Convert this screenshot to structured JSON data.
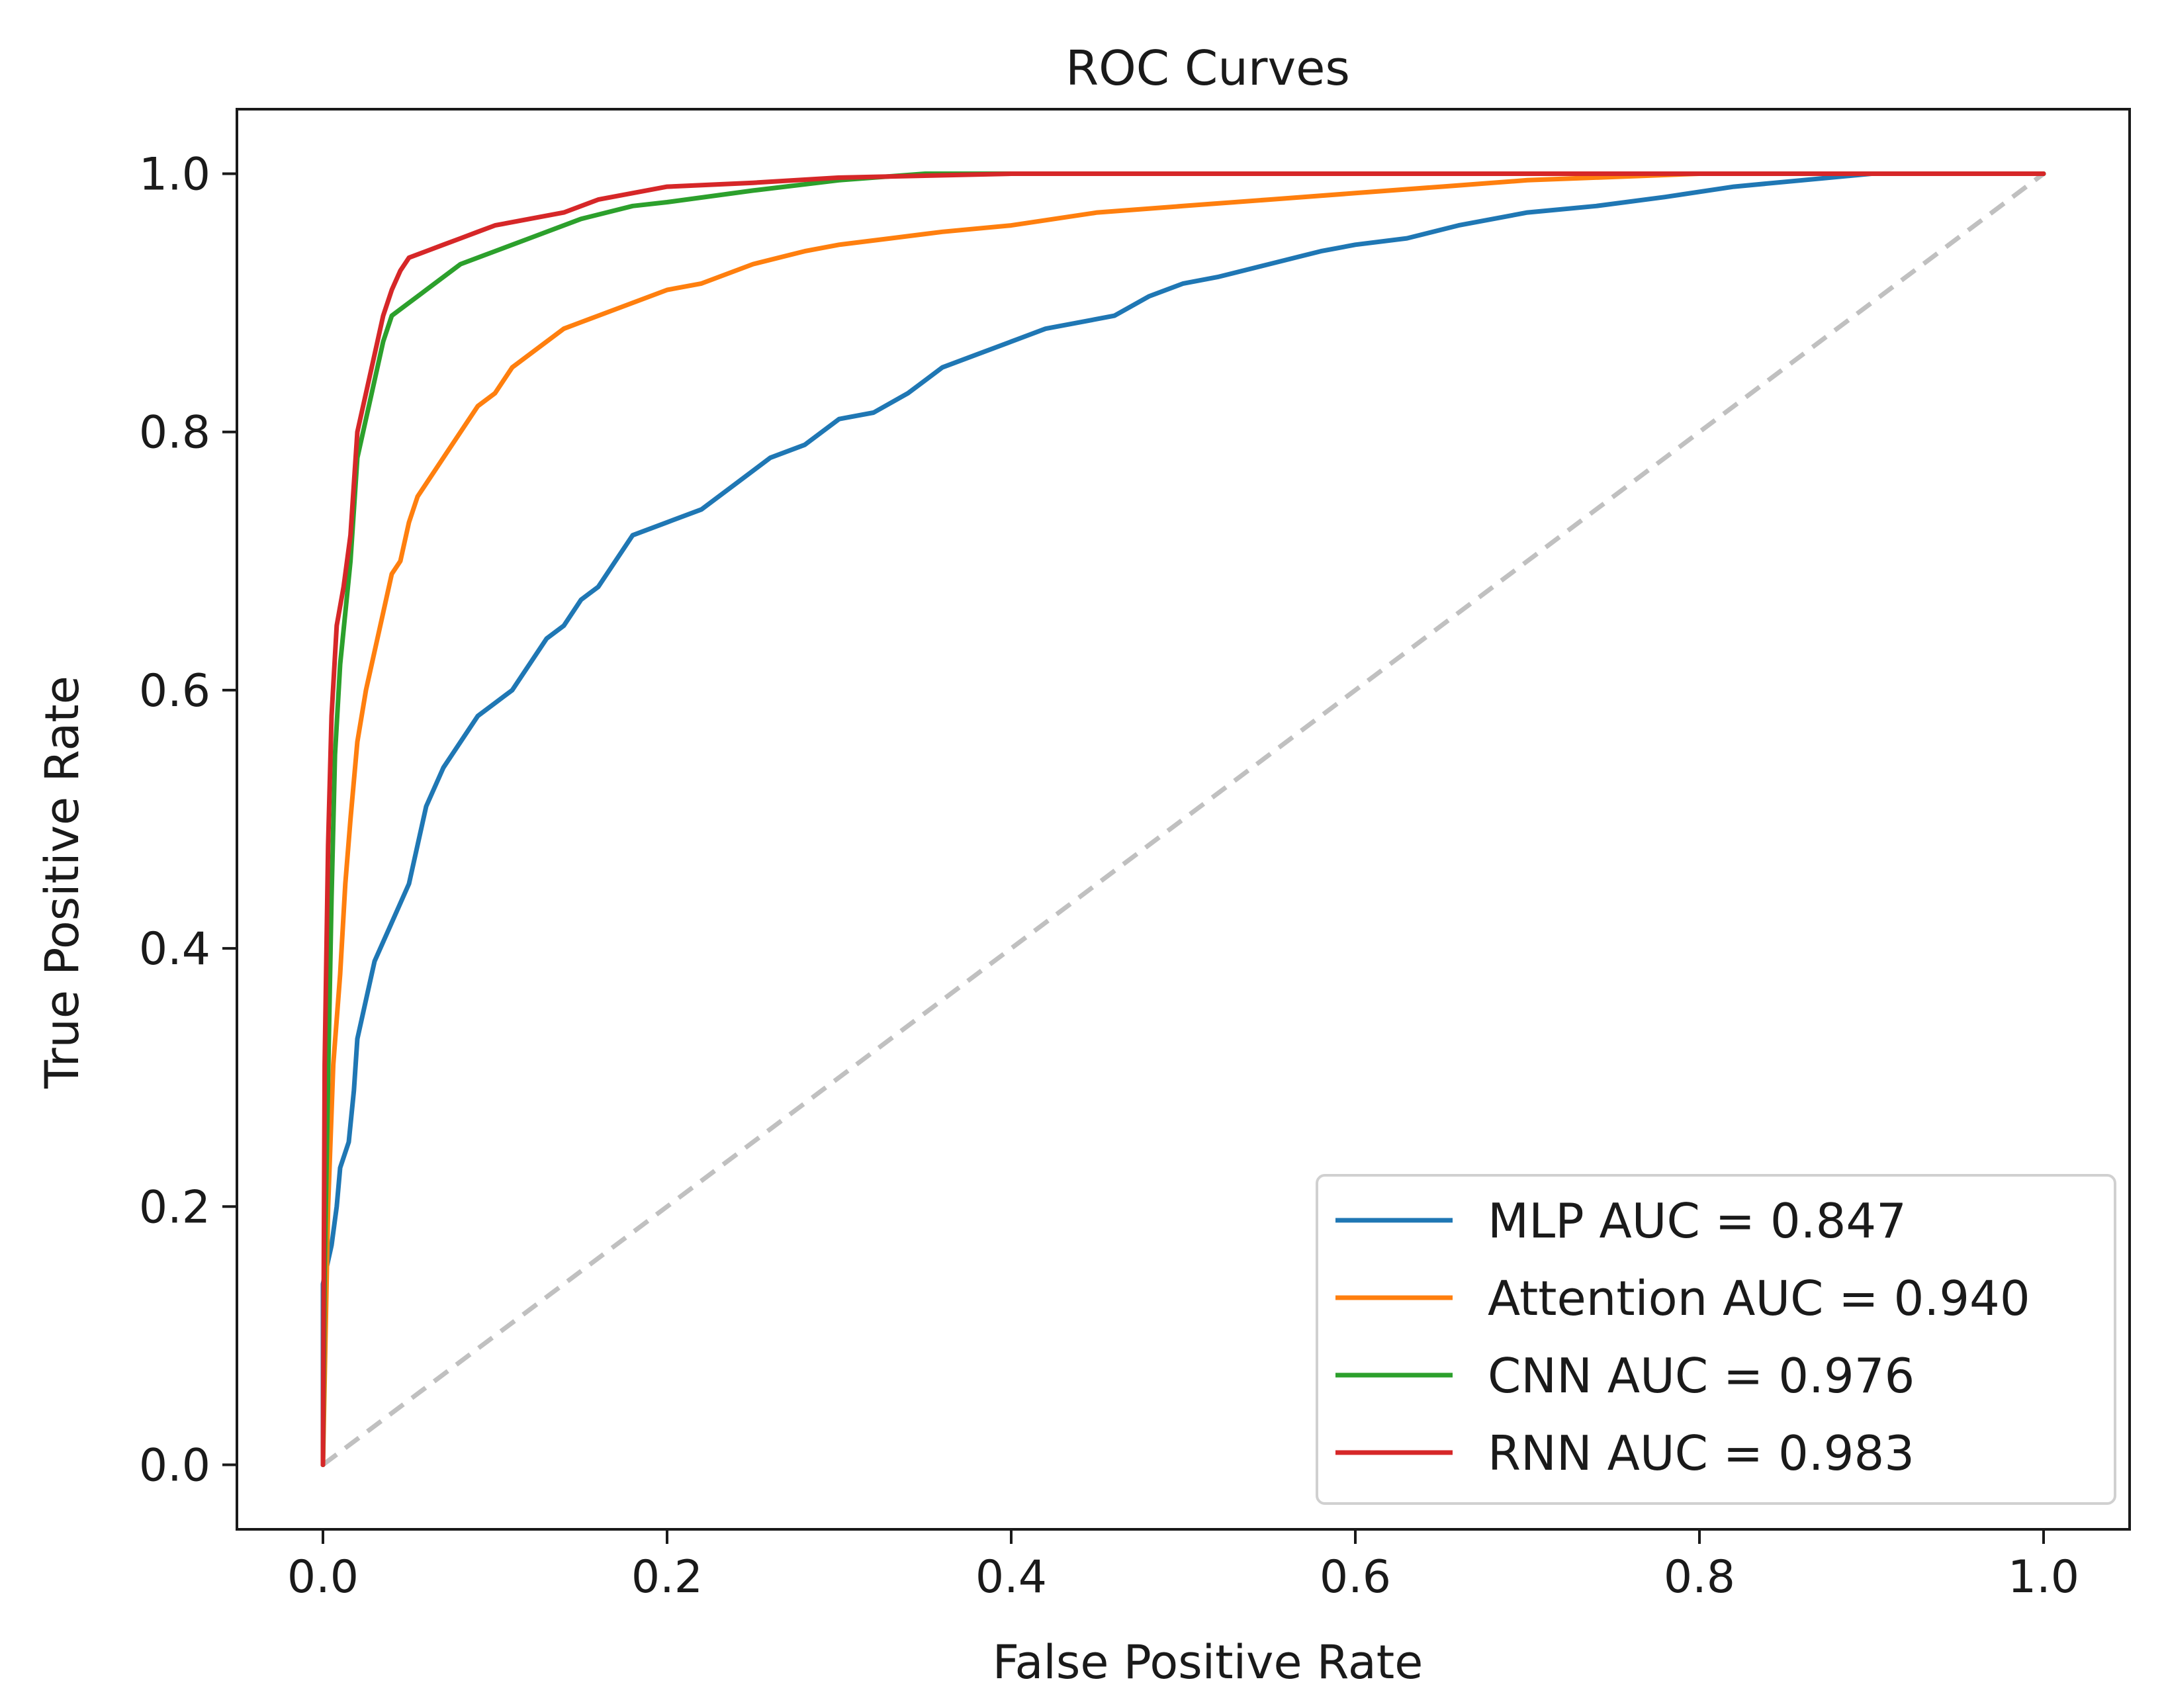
{
  "chart_data": {
    "type": "line",
    "title": "ROC Curves",
    "xlabel": "False Positive Rate",
    "ylabel": "True Positive Rate",
    "xlim": [
      -0.05,
      1.05
    ],
    "ylim": [
      -0.05,
      1.05
    ],
    "xticks": [
      0.0,
      0.2,
      0.4,
      0.6,
      0.8,
      1.0
    ],
    "yticks": [
      0.0,
      0.2,
      0.4,
      0.6,
      0.8,
      1.0
    ],
    "xtick_labels": [
      "0.0",
      "0.2",
      "0.4",
      "0.6",
      "0.8",
      "1.0"
    ],
    "ytick_labels": [
      "0.0",
      "0.2",
      "0.4",
      "0.6",
      "0.8",
      "1.0"
    ],
    "grid": false,
    "legend_position": "lower-right",
    "diagonal": {
      "color": "#c0c0c0",
      "points": [
        [
          0,
          0
        ],
        [
          1,
          1
        ]
      ]
    },
    "series": [
      {
        "name": "MLP AUC = 0.847",
        "color": "#1f77b4",
        "points": [
          [
            0,
            0
          ],
          [
            0,
            0.14
          ],
          [
            0.005,
            0.17
          ],
          [
            0.008,
            0.2
          ],
          [
            0.01,
            0.23
          ],
          [
            0.015,
            0.25
          ],
          [
            0.018,
            0.29
          ],
          [
            0.02,
            0.33
          ],
          [
            0.025,
            0.36
          ],
          [
            0.03,
            0.39
          ],
          [
            0.04,
            0.42
          ],
          [
            0.05,
            0.45
          ],
          [
            0.055,
            0.48
          ],
          [
            0.06,
            0.51
          ],
          [
            0.07,
            0.54
          ],
          [
            0.08,
            0.56
          ],
          [
            0.09,
            0.58
          ],
          [
            0.1,
            0.59
          ],
          [
            0.11,
            0.6
          ],
          [
            0.12,
            0.62
          ],
          [
            0.13,
            0.64
          ],
          [
            0.14,
            0.65
          ],
          [
            0.15,
            0.67
          ],
          [
            0.16,
            0.68
          ],
          [
            0.17,
            0.7
          ],
          [
            0.18,
            0.72
          ],
          [
            0.2,
            0.73
          ],
          [
            0.22,
            0.74
          ],
          [
            0.24,
            0.76
          ],
          [
            0.26,
            0.78
          ],
          [
            0.28,
            0.79
          ],
          [
            0.3,
            0.81
          ],
          [
            0.32,
            0.815
          ],
          [
            0.34,
            0.83
          ],
          [
            0.36,
            0.85
          ],
          [
            0.38,
            0.86
          ],
          [
            0.4,
            0.87
          ],
          [
            0.42,
            0.88
          ],
          [
            0.44,
            0.885
          ],
          [
            0.46,
            0.89
          ],
          [
            0.48,
            0.905
          ],
          [
            0.5,
            0.915
          ],
          [
            0.52,
            0.92
          ],
          [
            0.55,
            0.93
          ],
          [
            0.58,
            0.94
          ],
          [
            0.6,
            0.945
          ],
          [
            0.63,
            0.95
          ],
          [
            0.66,
            0.96
          ],
          [
            0.7,
            0.97
          ],
          [
            0.74,
            0.975
          ],
          [
            0.78,
            0.982
          ],
          [
            0.82,
            0.99
          ],
          [
            0.86,
            0.995
          ],
          [
            0.9,
            1.0
          ],
          [
            1.0,
            1.0
          ]
        ]
      },
      {
        "name": "Attention AUC = 0.940",
        "color": "#ff7f0e",
        "points": [
          [
            0,
            0
          ],
          [
            0.003,
            0.2
          ],
          [
            0.006,
            0.31
          ],
          [
            0.01,
            0.38
          ],
          [
            0.013,
            0.45
          ],
          [
            0.016,
            0.5
          ],
          [
            0.02,
            0.56
          ],
          [
            0.025,
            0.6
          ],
          [
            0.03,
            0.63
          ],
          [
            0.035,
            0.66
          ],
          [
            0.04,
            0.69
          ],
          [
            0.045,
            0.7
          ],
          [
            0.05,
            0.73
          ],
          [
            0.055,
            0.75
          ],
          [
            0.06,
            0.76
          ],
          [
            0.07,
            0.78
          ],
          [
            0.08,
            0.8
          ],
          [
            0.09,
            0.82
          ],
          [
            0.1,
            0.83
          ],
          [
            0.11,
            0.85
          ],
          [
            0.12,
            0.86
          ],
          [
            0.13,
            0.87
          ],
          [
            0.14,
            0.88
          ],
          [
            0.15,
            0.885
          ],
          [
            0.16,
            0.89
          ],
          [
            0.18,
            0.9
          ],
          [
            0.2,
            0.91
          ],
          [
            0.22,
            0.915
          ],
          [
            0.25,
            0.93
          ],
          [
            0.28,
            0.94
          ],
          [
            0.3,
            0.945
          ],
          [
            0.33,
            0.95
          ],
          [
            0.36,
            0.955
          ],
          [
            0.4,
            0.96
          ],
          [
            0.45,
            0.97
          ],
          [
            0.5,
            0.975
          ],
          [
            0.55,
            0.98
          ],
          [
            0.6,
            0.985
          ],
          [
            0.65,
            0.99
          ],
          [
            0.7,
            0.995
          ],
          [
            0.8,
            1.0
          ],
          [
            1.0,
            1.0
          ]
        ]
      },
      {
        "name": "CNN AUC = 0.976",
        "color": "#2ca02c",
        "points": [
          [
            0,
            0
          ],
          [
            0.001,
            0.15
          ],
          [
            0.003,
            0.3
          ],
          [
            0.005,
            0.44
          ],
          [
            0.007,
            0.55
          ],
          [
            0.01,
            0.62
          ],
          [
            0.013,
            0.66
          ],
          [
            0.016,
            0.7
          ],
          [
            0.018,
            0.74
          ],
          [
            0.02,
            0.78
          ],
          [
            0.025,
            0.81
          ],
          [
            0.03,
            0.84
          ],
          [
            0.035,
            0.87
          ],
          [
            0.04,
            0.89
          ],
          [
            0.05,
            0.9
          ],
          [
            0.06,
            0.91
          ],
          [
            0.08,
            0.93
          ],
          [
            0.1,
            0.94
          ],
          [
            0.12,
            0.95
          ],
          [
            0.15,
            0.965
          ],
          [
            0.18,
            0.975
          ],
          [
            0.2,
            0.978
          ],
          [
            0.25,
            0.987
          ],
          [
            0.3,
            0.995
          ],
          [
            0.35,
            1.0
          ],
          [
            1.0,
            1.0
          ]
        ]
      },
      {
        "name": "RNN AUC = 0.983",
        "color": "#d62728",
        "points": [
          [
            0,
            0
          ],
          [
            0.001,
            0.31
          ],
          [
            0.003,
            0.48
          ],
          [
            0.005,
            0.58
          ],
          [
            0.008,
            0.65
          ],
          [
            0.012,
            0.68
          ],
          [
            0.016,
            0.72
          ],
          [
            0.02,
            0.8
          ],
          [
            0.025,
            0.83
          ],
          [
            0.03,
            0.86
          ],
          [
            0.035,
            0.89
          ],
          [
            0.04,
            0.91
          ],
          [
            0.045,
            0.925
          ],
          [
            0.05,
            0.935
          ],
          [
            0.06,
            0.94
          ],
          [
            0.07,
            0.945
          ],
          [
            0.08,
            0.95
          ],
          [
            0.09,
            0.955
          ],
          [
            0.1,
            0.96
          ],
          [
            0.12,
            0.965
          ],
          [
            0.14,
            0.97
          ],
          [
            0.16,
            0.98
          ],
          [
            0.18,
            0.985
          ],
          [
            0.2,
            0.99
          ],
          [
            0.25,
            0.993
          ],
          [
            0.3,
            0.997
          ],
          [
            0.4,
            1.0
          ],
          [
            1.0,
            1.0
          ]
        ]
      }
    ]
  }
}
